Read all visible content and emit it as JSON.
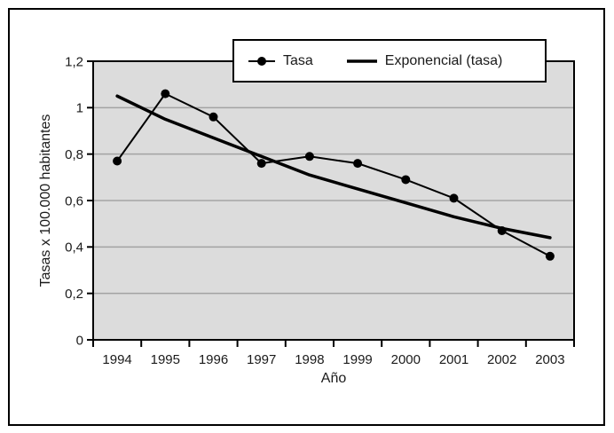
{
  "figure": {
    "background": "#ffffff",
    "border_color": "#000000"
  },
  "chart_data": {
    "type": "line",
    "title": "",
    "xlabel": "Año",
    "ylabel": "Tasas x 100.000 habitantes",
    "categories": [
      "1994",
      "1995",
      "1996",
      "1997",
      "1998",
      "1999",
      "2000",
      "2001",
      "2002",
      "2003"
    ],
    "series": [
      {
        "name": "Tasa",
        "style": "line-with-markers",
        "marker": "filled-circle",
        "color": "#000000",
        "values": [
          0.77,
          1.06,
          0.96,
          0.76,
          0.79,
          0.76,
          0.69,
          0.61,
          0.47,
          0.36
        ]
      },
      {
        "name": "Exponencial (tasa)",
        "style": "trendline",
        "color": "#000000",
        "values": [
          1.05,
          0.95,
          0.87,
          0.79,
          0.71,
          0.65,
          0.59,
          0.53,
          0.48,
          0.44
        ]
      }
    ],
    "ylim": [
      0,
      1.2
    ],
    "yticks": {
      "values": [
        0,
        0.2,
        0.4,
        0.6,
        0.8,
        1,
        1.2
      ],
      "labels": [
        "0",
        "0,2",
        "0,4",
        "0,6",
        "0,8",
        "1",
        "1,2"
      ]
    },
    "grid": "horizontal",
    "plot_bg": "#dcdcdc",
    "grid_color": "#a3a3a3",
    "axis_color": "#000000",
    "legend": {
      "position": "top-right-overlapping-plot",
      "items": [
        "Tasa",
        "Exponencial (tasa)"
      ]
    }
  }
}
